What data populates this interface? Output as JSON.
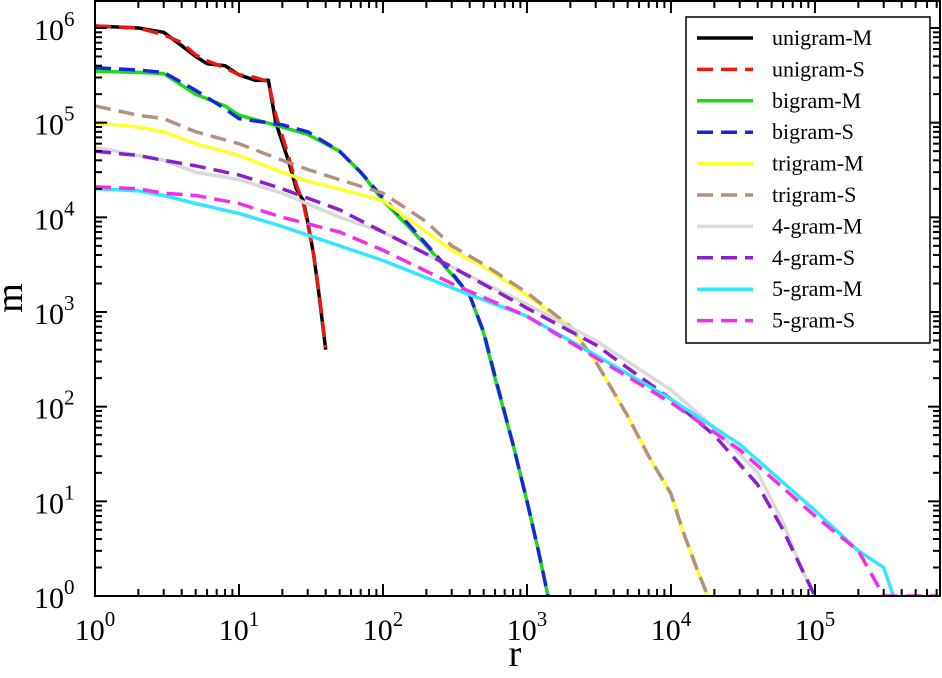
{
  "chart_data": {
    "type": "line",
    "xlabel": "r",
    "ylabel": "m",
    "xscale": "log",
    "yscale": "log",
    "xlim": [
      1,
      750000
    ],
    "ylim": [
      1,
      1000000
    ],
    "grid": false,
    "legend_position": "top-right",
    "x_ticks": [
      {
        "value": 1,
        "base": "10",
        "exp": "0"
      },
      {
        "value": 10,
        "base": "10",
        "exp": "1"
      },
      {
        "value": 100,
        "base": "10",
        "exp": "2"
      },
      {
        "value": 1000,
        "base": "10",
        "exp": "3"
      },
      {
        "value": 10000,
        "base": "10",
        "exp": "4"
      },
      {
        "value": 100000,
        "base": "10",
        "exp": "5"
      }
    ],
    "y_ticks": [
      {
        "value": 1,
        "base": "10",
        "exp": "0"
      },
      {
        "value": 10,
        "base": "10",
        "exp": "1"
      },
      {
        "value": 100,
        "base": "10",
        "exp": "2"
      },
      {
        "value": 1000,
        "base": "10",
        "exp": "3"
      },
      {
        "value": 10000,
        "base": "10",
        "exp": "4"
      },
      {
        "value": 100000,
        "base": "10",
        "exp": "5"
      },
      {
        "value": 1000000,
        "base": "10",
        "exp": "6"
      }
    ],
    "series": [
      {
        "name": "unigram-M",
        "color": "#000000",
        "dash": "solid",
        "x": [
          1,
          2,
          3,
          4,
          5,
          6,
          8,
          10,
          13,
          16,
          18,
          22,
          25,
          28,
          30,
          33,
          36,
          40
        ],
        "y": [
          1050000,
          1000000,
          900000,
          650000,
          500000,
          420000,
          400000,
          320000,
          280000,
          280000,
          100000,
          40000,
          20000,
          15000,
          9000,
          4000,
          1500,
          400
        ]
      },
      {
        "name": "unigram-S",
        "color": "#e8190f",
        "dash": "dashed",
        "x": [
          1,
          2,
          3,
          4,
          5,
          6,
          8,
          10,
          13,
          16,
          18,
          22,
          25,
          28,
          30,
          33,
          36,
          40
        ],
        "y": [
          1050000,
          1000000,
          850000,
          700000,
          520000,
          450000,
          380000,
          320000,
          300000,
          270000,
          120000,
          45000,
          22000,
          14000,
          8500,
          4000,
          1600,
          420
        ]
      },
      {
        "name": "bigram-M",
        "color": "#1ed91a",
        "dash": "solid",
        "x": [
          1,
          2,
          3,
          5,
          8,
          10,
          20,
          30,
          50,
          70,
          100,
          150,
          200,
          300,
          400,
          500,
          600,
          800,
          1000,
          1200,
          1400
        ],
        "y": [
          350000,
          340000,
          330000,
          200000,
          150000,
          120000,
          90000,
          75000,
          50000,
          30000,
          15000,
          8000,
          5000,
          2500,
          1500,
          600,
          200,
          40,
          10,
          3,
          1
        ]
      },
      {
        "name": "bigram-S",
        "color": "#1428d9",
        "dash": "dashed",
        "x": [
          1,
          2,
          3,
          5,
          8,
          10,
          20,
          30,
          50,
          70,
          100,
          150,
          200,
          300,
          400,
          500,
          600,
          800,
          1000,
          1200,
          1400
        ],
        "y": [
          380000,
          360000,
          340000,
          220000,
          140000,
          110000,
          95000,
          80000,
          50000,
          30000,
          16000,
          8500,
          5200,
          2600,
          1500,
          620,
          210,
          40,
          10,
          3,
          1
        ]
      },
      {
        "name": "trigram-M",
        "color": "#ffff33",
        "dash": "solid",
        "x": [
          1,
          2,
          3,
          5,
          10,
          20,
          30,
          50,
          100,
          200,
          300,
          500,
          1000,
          2000,
          3000,
          5000,
          7000,
          10000,
          12000,
          15000,
          18000
        ],
        "y": [
          100000,
          90000,
          80000,
          60000,
          45000,
          30000,
          24000,
          20000,
          15000,
          7000,
          4500,
          3000,
          1500,
          700,
          300,
          80,
          30,
          12,
          5,
          2,
          1
        ]
      },
      {
        "name": "trigram-S",
        "color": "#b39080",
        "dash": "dashed",
        "x": [
          1,
          2,
          3,
          5,
          10,
          20,
          30,
          50,
          100,
          200,
          300,
          500,
          1000,
          2000,
          3000,
          5000,
          7000,
          10000,
          12000,
          15000,
          18000
        ],
        "y": [
          150000,
          120000,
          110000,
          80000,
          60000,
          40000,
          32000,
          25000,
          18000,
          9000,
          5000,
          3200,
          1600,
          700,
          300,
          80,
          30,
          12,
          5,
          2,
          1
        ]
      },
      {
        "name": "4-gram-M",
        "color": "#d9d9d9",
        "dash": "solid",
        "x": [
          1,
          2,
          3,
          5,
          10,
          20,
          50,
          100,
          300,
          1000,
          3000,
          10000,
          20000,
          40000,
          60000,
          80000,
          100000
        ],
        "y": [
          55000,
          45000,
          40000,
          30000,
          25000,
          18000,
          10000,
          7000,
          3000,
          1200,
          500,
          150,
          60,
          20,
          6,
          2,
          1
        ]
      },
      {
        "name": "4-gram-S",
        "color": "#8c1fcc",
        "dash": "dashed",
        "x": [
          1,
          2,
          3,
          5,
          10,
          20,
          50,
          100,
          300,
          1000,
          3000,
          10000,
          20000,
          40000,
          60000,
          80000,
          100000
        ],
        "y": [
          50000,
          45000,
          40000,
          35000,
          28000,
          20000,
          12000,
          7000,
          3000,
          1100,
          450,
          120,
          50,
          15,
          5,
          2,
          1
        ]
      },
      {
        "name": "5-gram-M",
        "color": "#33e6ff",
        "dash": "solid",
        "x": [
          1,
          2,
          3,
          5,
          10,
          20,
          50,
          100,
          300,
          1000,
          3000,
          10000,
          30000,
          100000,
          200000,
          300000,
          350000
        ],
        "y": [
          20000,
          19000,
          17000,
          14000,
          11000,
          8000,
          5000,
          3500,
          1800,
          900,
          350,
          120,
          40,
          8,
          3,
          2,
          1
        ]
      },
      {
        "name": "5-gram-S",
        "color": "#f030e6",
        "dash": "dashed",
        "x": [
          1,
          2,
          3,
          5,
          10,
          20,
          50,
          100,
          300,
          1000,
          3000,
          10000,
          30000,
          100000,
          200000,
          300000,
          700000
        ],
        "y": [
          21000,
          20000,
          18000,
          17000,
          14000,
          10000,
          7000,
          4500,
          2000,
          900,
          330,
          110,
          35,
          7,
          3,
          1,
          1
        ]
      }
    ]
  }
}
